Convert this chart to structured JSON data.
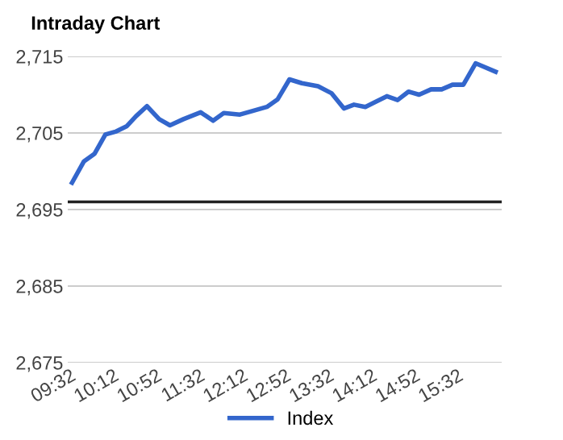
{
  "chart_data": {
    "type": "line",
    "title": "Intraday Chart",
    "x": [
      9.566,
      9.751,
      9.916,
      10.083,
      10.251,
      10.416,
      10.558,
      10.726,
      10.916,
      11.083,
      11.291,
      11.558,
      11.751,
      11.916,
      12.166,
      12.376,
      12.583,
      12.751,
      12.933,
      13.126,
      13.376,
      13.583,
      13.776,
      13.933,
      14.108,
      14.276,
      14.441,
      14.608,
      14.776,
      14.941,
      15.126,
      15.291,
      15.458,
      15.626,
      15.816,
      16.126
    ],
    "series": [
      {
        "name": "Index",
        "color": "#3366cc",
        "values": [
          2698.5,
          2701.3,
          2702.3,
          2704.8,
          2705.2,
          2705.9,
          2707.2,
          2708.5,
          2706.8,
          2706.0,
          2706.8,
          2707.7,
          2706.6,
          2707.6,
          2707.4,
          2707.9,
          2708.4,
          2709.4,
          2712.0,
          2711.5,
          2711.1,
          2710.2,
          2708.2,
          2708.7,
          2708.4,
          2709.1,
          2709.8,
          2709.3,
          2710.4,
          2710.0,
          2710.7,
          2710.7,
          2711.3,
          2711.3,
          2714.1,
          2713.0
        ]
      }
    ],
    "xlim": [
      9.5,
      16.22
    ],
    "xticks": [
      {
        "value": 9.533,
        "label": "09:32"
      },
      {
        "value": 10.2,
        "label": "10:12"
      },
      {
        "value": 10.867,
        "label": "10:52"
      },
      {
        "value": 11.533,
        "label": "11:32"
      },
      {
        "value": 12.2,
        "label": "12:12"
      },
      {
        "value": 12.867,
        "label": "12:52"
      },
      {
        "value": 13.533,
        "label": "13:32"
      },
      {
        "value": 14.2,
        "label": "14:12"
      },
      {
        "value": 14.867,
        "label": "14:52"
      },
      {
        "value": 15.533,
        "label": "15:32"
      }
    ],
    "ylim": [
      2675,
      2715
    ],
    "yticks": [
      {
        "value": 2675,
        "label": "2,675"
      },
      {
        "value": 2685,
        "label": "2,685"
      },
      {
        "value": 2695,
        "label": "2,695"
      },
      {
        "value": 2705,
        "label": "2,705"
      },
      {
        "value": 2715,
        "label": "2,715"
      }
    ],
    "ref_lines": [
      {
        "axis": "y",
        "value": 2696,
        "color": "#222222"
      }
    ],
    "grid": "y",
    "legend": "bottom",
    "marker": "none",
    "line_style": "solid"
  }
}
